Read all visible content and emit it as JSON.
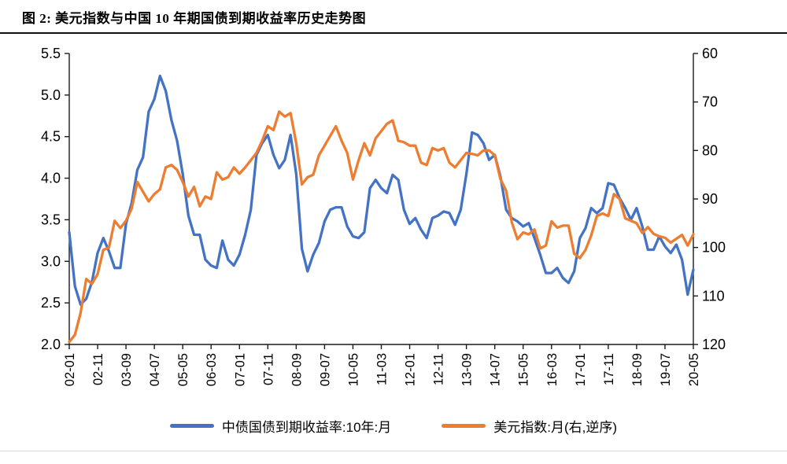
{
  "figure": {
    "title": "图 2: 美元指数与中国 10 年期国债到期收益率历史走势图"
  },
  "colors": {
    "bond": "#4472C4",
    "dxy": "#ED7D31",
    "axis": "#1a1a1a"
  },
  "legend": [
    {
      "label": "中债国债到期收益率:10年:月",
      "series": "bond"
    },
    {
      "label": "美元指数:月(右,逆序)",
      "series": "dxy"
    }
  ],
  "chart_data": {
    "type": "line",
    "title": "美元指数与中国10年期国债到期收益率历史走势图",
    "x_unit": "month (YY-MM), points sampled every 2 months from 2002-01 to 2020-05",
    "x_tick_every": 5,
    "x_tick_labels": [
      "02-01",
      "02-11",
      "03-09",
      "04-07",
      "05-05",
      "06-03",
      "07-01",
      "07-11",
      "08-09",
      "09-07",
      "10-05",
      "11-03",
      "12-01",
      "12-11",
      "13-09",
      "14-07",
      "15-05",
      "16-03",
      "17-01",
      "17-11",
      "18-09",
      "19-07",
      "20-05"
    ],
    "left_axis": {
      "min": 2.0,
      "max": 5.5,
      "step": 0.5,
      "decimals": 1
    },
    "right_axis": {
      "min": 60,
      "max": 120,
      "step": 10,
      "decimals": 0,
      "reversed": true
    },
    "grid": false,
    "legend_position": "bottom",
    "series": [
      {
        "name": "中债国债到期收益率:10年:月",
        "axis": "left",
        "color": "#4472C4",
        "values": [
          3.35,
          2.7,
          2.48,
          2.55,
          2.75,
          3.1,
          3.28,
          3.12,
          2.92,
          2.92,
          3.45,
          3.7,
          4.1,
          4.25,
          4.8,
          4.95,
          5.23,
          5.05,
          4.7,
          4.45,
          4.05,
          3.55,
          3.32,
          3.32,
          3.02,
          2.95,
          2.92,
          3.25,
          3.02,
          2.95,
          3.08,
          3.32,
          3.62,
          4.28,
          4.42,
          4.52,
          4.28,
          4.12,
          4.22,
          4.52,
          4.05,
          3.15,
          2.88,
          3.08,
          3.22,
          3.48,
          3.62,
          3.65,
          3.65,
          3.42,
          3.3,
          3.28,
          3.35,
          3.88,
          3.98,
          3.88,
          3.82,
          4.04,
          3.98,
          3.62,
          3.45,
          3.52,
          3.38,
          3.28,
          3.52,
          3.55,
          3.6,
          3.58,
          3.44,
          3.62,
          4.05,
          4.55,
          4.52,
          4.42,
          4.22,
          4.28,
          4.02,
          3.62,
          3.52,
          3.48,
          3.42,
          3.46,
          3.28,
          3.08,
          2.86,
          2.86,
          2.92,
          2.8,
          2.74,
          2.88,
          3.28,
          3.4,
          3.64,
          3.58,
          3.64,
          3.94,
          3.92,
          3.76,
          3.64,
          3.5,
          3.64,
          3.42,
          3.14,
          3.14,
          3.3,
          3.18,
          3.1,
          3.2,
          3.02,
          2.6,
          2.9
        ]
      },
      {
        "name": "美元指数:月(右,逆序)",
        "axis": "right",
        "color": "#ED7D31",
        "values": [
          119.5,
          118.0,
          113.5,
          106.5,
          107.5,
          105.5,
          100.5,
          100.0,
          94.5,
          96.0,
          94.5,
          92.0,
          86.5,
          88.5,
          90.5,
          89.0,
          88.0,
          83.5,
          83.0,
          84.0,
          86.5,
          89.5,
          87.5,
          91.5,
          89.5,
          90.0,
          84.5,
          86.0,
          85.5,
          83.5,
          84.8,
          83.5,
          82.0,
          80.5,
          78.0,
          75.0,
          75.8,
          72.0,
          73.0,
          72.3,
          78.5,
          87.0,
          85.5,
          85.0,
          81.0,
          79.0,
          77.0,
          75.0,
          78.0,
          80.5,
          86.0,
          82.0,
          78.5,
          81.0,
          77.5,
          76.0,
          74.5,
          73.8,
          78.0,
          78.3,
          79.0,
          79.0,
          82.5,
          83.0,
          79.5,
          80.0,
          79.5,
          82.5,
          83.5,
          82.0,
          80.5,
          80.7,
          81.0,
          80.0,
          80.0,
          81.0,
          85.9,
          88.3,
          94.8,
          98.3,
          96.9,
          97.3,
          96.3,
          100.2,
          99.6,
          94.6,
          95.9,
          95.5,
          95.5,
          101.3,
          102.2,
          100.5,
          97.5,
          93.5,
          93.0,
          93.5,
          89.0,
          90.0,
          94.0,
          94.5,
          95.0,
          97.0,
          95.8,
          97.2,
          97.7,
          98.0,
          99.0,
          98.2,
          97.4,
          99.6,
          97.3
        ]
      }
    ]
  }
}
